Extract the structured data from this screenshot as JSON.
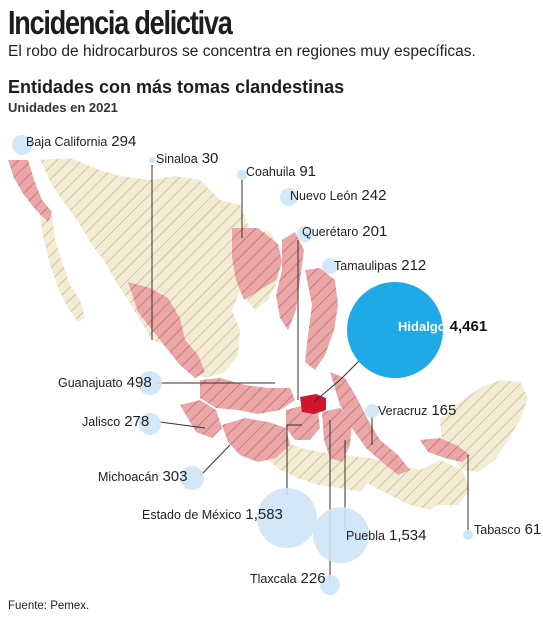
{
  "header": {
    "title": "Incidencia delictiva",
    "subtitle": "El robo de hidrocarburos se concentra en regiones muy específicas."
  },
  "map": {
    "title": "Entidades con más tomas clandestinas",
    "subtitle": "Unidades en 2021",
    "source": "Fuente: Pemex.",
    "colors": {
      "base_region": "#efe6c9",
      "highlight_region": "#e8a1a1",
      "max_region": "#d1152e",
      "bubble_light": "#cde6f7",
      "bubble_max": "#1fa9e6"
    },
    "states": [
      {
        "name": "Baja California",
        "value": "294",
        "raw": 294
      },
      {
        "name": "Sinaloa",
        "value": "30",
        "raw": 30
      },
      {
        "name": "Coahuila",
        "value": "91",
        "raw": 91
      },
      {
        "name": "Nuevo León",
        "value": "242",
        "raw": 242
      },
      {
        "name": "Querétaro",
        "value": "201",
        "raw": 201
      },
      {
        "name": "Tamaulipas",
        "value": "212",
        "raw": 212
      },
      {
        "name": "Hidalgo",
        "value": "4,461",
        "raw": 4461
      },
      {
        "name": "Guanajuato",
        "value": "498",
        "raw": 498
      },
      {
        "name": "Veracruz",
        "value": "165",
        "raw": 165
      },
      {
        "name": "Jalisco",
        "value": "278",
        "raw": 278
      },
      {
        "name": "Michoacán",
        "value": "303",
        "raw": 303
      },
      {
        "name": "Estado de México",
        "value": "1,583",
        "raw": 1583
      },
      {
        "name": "Puebla",
        "value": "1,534",
        "raw": 1534
      },
      {
        "name": "Tabasco",
        "value": "61",
        "raw": 61
      },
      {
        "name": "Tlaxcala",
        "value": "226",
        "raw": 226
      }
    ]
  }
}
